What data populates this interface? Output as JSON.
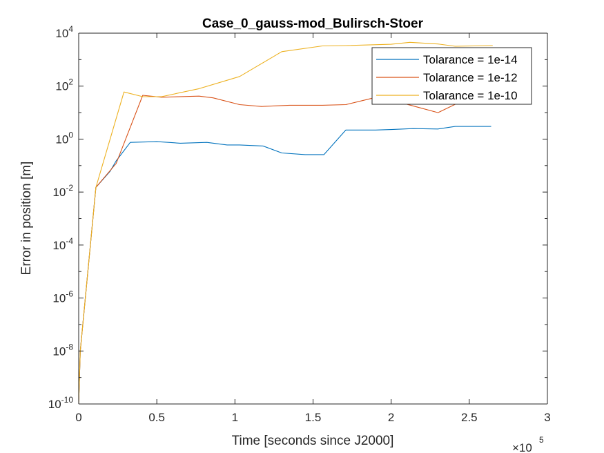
{
  "chart_data": {
    "type": "line",
    "title": "Case_0_gauss-mod_Bulirsch-Stoer",
    "xlabel": "Time [seconds since J2000]",
    "ylabel": "Error in position [m]",
    "x_exponent_label": "×10",
    "x_exponent_power": "5",
    "x_multiplier": 100000,
    "x_scale": "linear",
    "y_scale": "log",
    "xlim": [
      0,
      300000
    ],
    "ylim": [
      1e-10,
      10000
    ],
    "grid": false,
    "legend_position": "top-right",
    "x_ticks": [
      {
        "value": 0,
        "label": "0"
      },
      {
        "value": 50000,
        "label": "0.5"
      },
      {
        "value": 100000,
        "label": "1"
      },
      {
        "value": 150000,
        "label": "1.5"
      },
      {
        "value": 200000,
        "label": "2"
      },
      {
        "value": 250000,
        "label": "2.5"
      },
      {
        "value": 300000,
        "label": "3"
      }
    ],
    "y_ticks": [
      {
        "value": 1e-10,
        "base": "10",
        "exp": "-10"
      },
      {
        "value": 1e-08,
        "base": "10",
        "exp": "-8"
      },
      {
        "value": 1e-06,
        "base": "10",
        "exp": "-6"
      },
      {
        "value": 0.0001,
        "base": "10",
        "exp": "-4"
      },
      {
        "value": 0.01,
        "base": "10",
        "exp": "-2"
      },
      {
        "value": 1,
        "base": "10",
        "exp": "0"
      },
      {
        "value": 100,
        "base": "10",
        "exp": "2"
      },
      {
        "value": 10000,
        "base": "10",
        "exp": "4"
      }
    ],
    "series": [
      {
        "name": "Tolarance = 1e-14",
        "color": "#0072bd",
        "x": [
          0,
          1000,
          11000,
          20000,
          24000,
          33000,
          50000,
          65000,
          82000,
          95000,
          103000,
          118000,
          130000,
          145000,
          157000,
          171000,
          190000,
          200000,
          214000,
          230000,
          241000,
          264000
        ],
        "y": [
          1e-10,
          1e-08,
          0.015,
          0.06,
          0.15,
          0.75,
          0.8,
          0.7,
          0.75,
          0.6,
          0.6,
          0.55,
          0.3,
          0.26,
          0.26,
          2.2,
          2.2,
          2.3,
          2.5,
          2.4,
          3.0,
          3.0
        ]
      },
      {
        "name": "Tolarance = 1e-12",
        "color": "#d95319",
        "x": [
          0,
          1000,
          11000,
          24000,
          41000,
          53000,
          77000,
          86000,
          103000,
          117000,
          135000,
          156000,
          171000,
          188000,
          200000,
          217000,
          230000,
          244000,
          265000
        ],
        "y": [
          1e-10,
          1e-08,
          0.015,
          0.12,
          45,
          38,
          42,
          36,
          20,
          17,
          19,
          19,
          20,
          35,
          30,
          16,
          10,
          25,
          30
        ]
      },
      {
        "name": "Tolarance = 1e-10",
        "color": "#edb120",
        "x": [
          0,
          1000,
          11000,
          29000,
          41000,
          53000,
          77000,
          103000,
          130000,
          156000,
          171000,
          200000,
          212000,
          230000,
          241000,
          265000
        ],
        "y": [
          1e-10,
          1e-08,
          0.015,
          60,
          40,
          40,
          80,
          230,
          2000,
          3300,
          3400,
          3800,
          4500,
          3900,
          3200,
          3400
        ]
      }
    ]
  }
}
